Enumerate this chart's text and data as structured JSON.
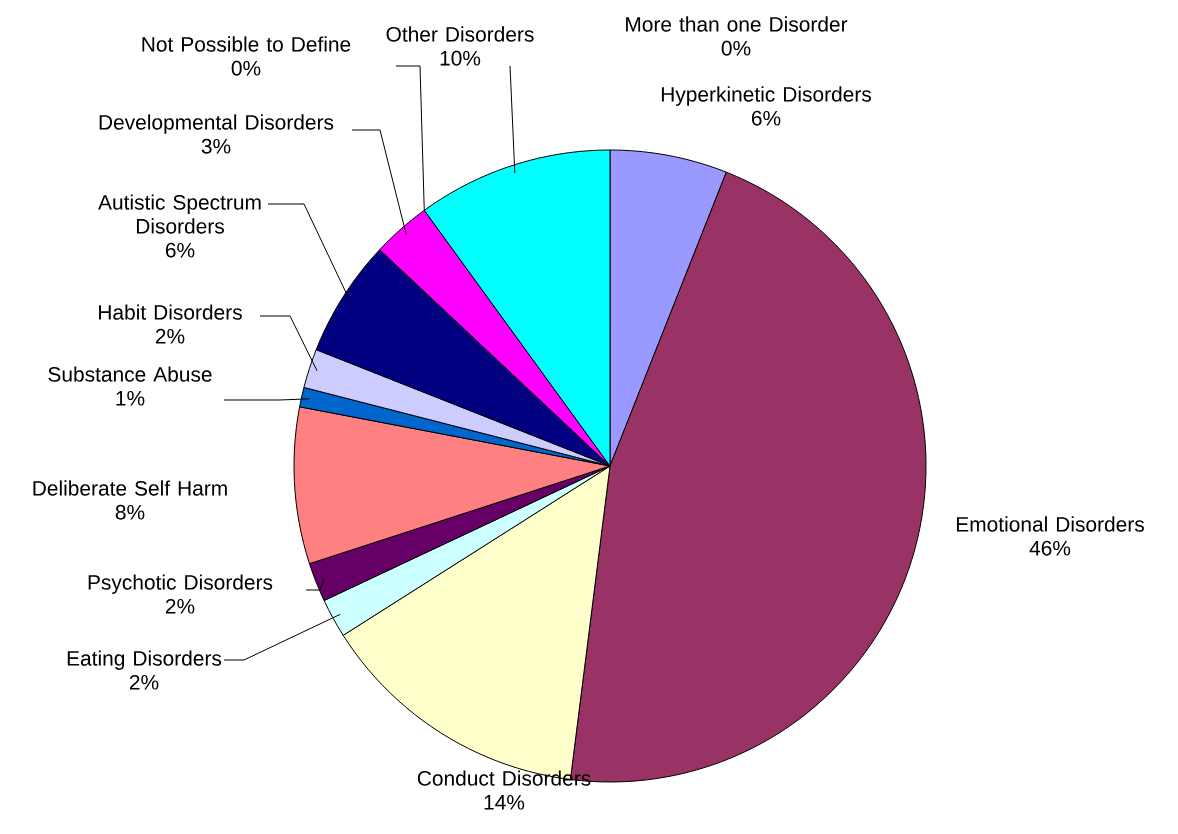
{
  "chart_data": {
    "type": "pie",
    "categories": [
      "More than one Disorder",
      "Hyperkinetic Disorders",
      "Emotional Disorders",
      "Conduct Disorders",
      "Eating Disorders",
      "Psychotic Disorders",
      "Deliberate Self Harm",
      "Substance Abuse",
      "Habit Disorders",
      "Autistic Spectrum Disorders",
      "Developmental Disorders",
      "Not Possible to Define",
      "Other Disorders"
    ],
    "values": [
      0,
      6,
      46,
      14,
      2,
      2,
      8,
      1,
      2,
      6,
      3,
      0,
      10
    ],
    "value_labels": [
      "0%",
      "6%",
      "46%",
      "14%",
      "2%",
      "2%",
      "8%",
      "1%",
      "2%",
      "6%",
      "3%",
      "0%",
      "10%"
    ],
    "colors": [
      "#ffff00",
      "#9999ff",
      "#993366",
      "#ffffcc",
      "#ccffff",
      "#660066",
      "#ff8080",
      "#0066cc",
      "#ccccff",
      "#000080",
      "#ff00ff",
      "#800000",
      "#00ffff"
    ]
  }
}
